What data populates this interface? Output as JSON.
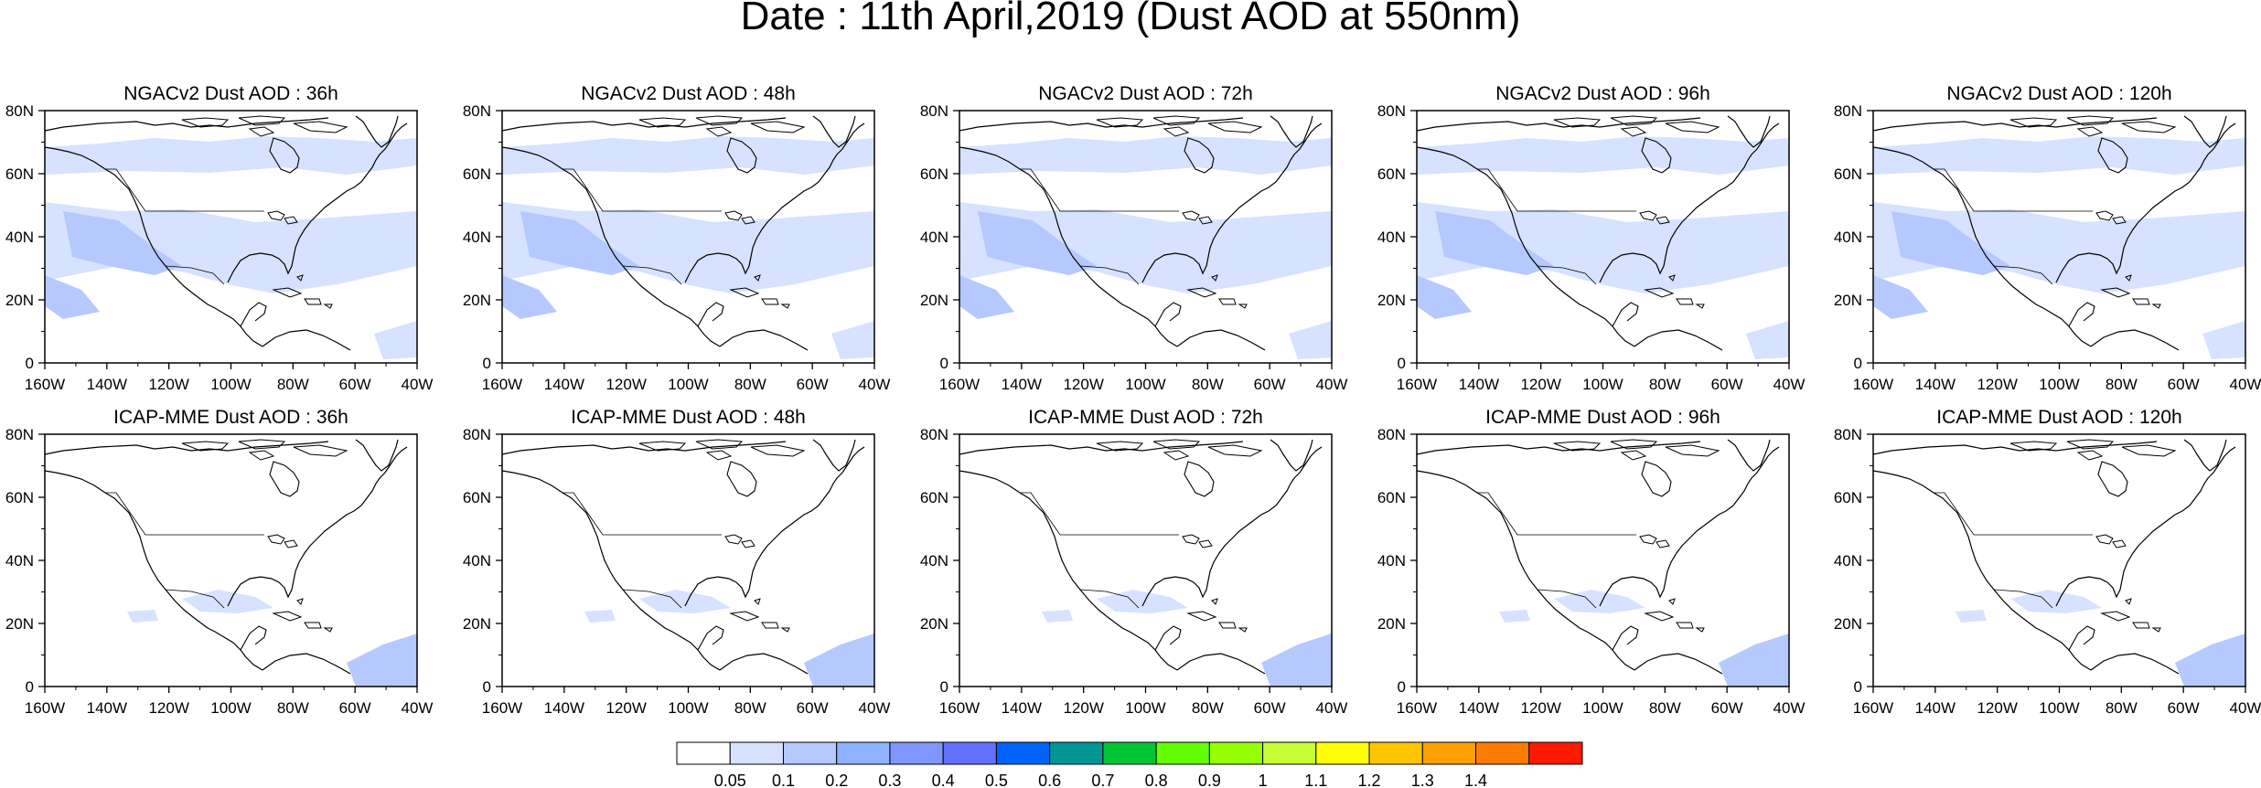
{
  "title": "Date : 11th April,2019 (Dust AOD at 550nm)",
  "panels": [
    {
      "title": "NGACv2 Dust AOD : 36h",
      "model": "ngac"
    },
    {
      "title": "NGACv2 Dust AOD : 48h",
      "model": "ngac"
    },
    {
      "title": "NGACv2 Dust AOD : 72h",
      "model": "ngac"
    },
    {
      "title": "NGACv2 Dust AOD : 96h",
      "model": "ngac"
    },
    {
      "title": "NGACv2 Dust AOD : 120h",
      "model": "ngac"
    },
    {
      "title": "ICAP-MME Dust AOD : 36h",
      "model": "icap"
    },
    {
      "title": "ICAP-MME Dust AOD : 48h",
      "model": "icap"
    },
    {
      "title": "ICAP-MME Dust AOD : 72h",
      "model": "icap"
    },
    {
      "title": "ICAP-MME Dust AOD : 96h",
      "model": "icap"
    },
    {
      "title": "ICAP-MME Dust AOD : 120h",
      "model": "icap"
    }
  ],
  "x_ticks": [
    "160W",
    "140W",
    "120W",
    "100W",
    "80W",
    "60W",
    "40W"
  ],
  "y_ticks": [
    "0",
    "20N",
    "40N",
    "60N",
    "80N"
  ],
  "map_extent": {
    "lon": [
      -160,
      -40
    ],
    "lat": [
      0,
      80
    ]
  },
  "colorbar": {
    "labels": [
      "0.05",
      "0.1",
      "0.2",
      "0.3",
      "0.4",
      "0.5",
      "0.6",
      "0.7",
      "0.8",
      "0.9",
      "1",
      "1.1",
      "1.2",
      "1.3",
      "1.4"
    ],
    "colors": [
      "#ffffff",
      "#d6e2ff",
      "#b5c9ff",
      "#8eb2ff",
      "#7f96ff",
      "#6370ff",
      "#0063ff",
      "#009696",
      "#00c633",
      "#63ff00",
      "#96ff00",
      "#c6ff33",
      "#ffff00",
      "#ffc600",
      "#ffa000",
      "#ff7c00",
      "#ff1900"
    ]
  }
}
